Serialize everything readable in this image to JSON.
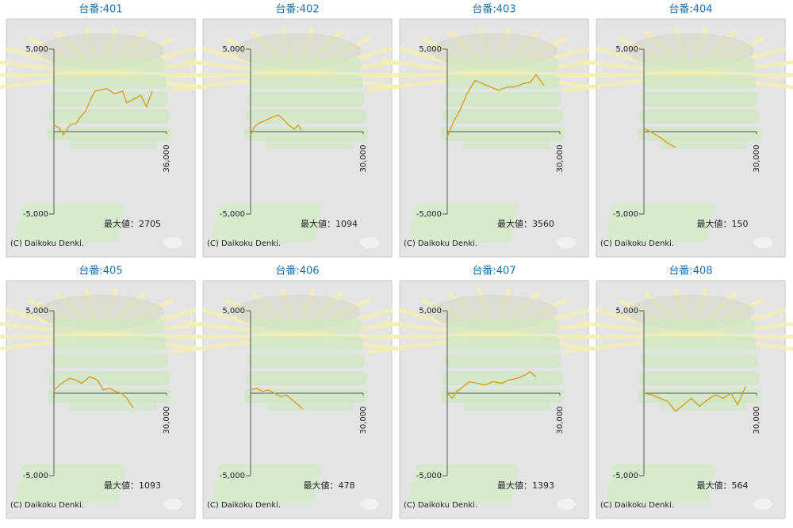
{
  "chart_data": [
    {
      "type": "line",
      "title": "台番:401",
      "x": [
        0,
        1775,
        3040,
        5070,
        7100,
        8100,
        10140,
        11830,
        13100,
        16900,
        19400,
        21970,
        23240,
        25800,
        27800,
        29600,
        31400
      ],
      "values": [
        400,
        200,
        -200,
        400,
        500,
        800,
        1250,
        2000,
        2450,
        2600,
        2300,
        2450,
        1750,
        2000,
        2200,
        1500,
        2450
      ],
      "color": "#d4a020",
      "xlim": [
        0,
        36000
      ],
      "ylim": [
        -5000,
        5000
      ],
      "xticks": [
        {
          "value": 36000,
          "label": "36,000"
        }
      ],
      "yticks": [
        {
          "value": 5000,
          "label": "5,000"
        },
        {
          "value": -5000,
          "label": "-5,000"
        }
      ],
      "annotation": "最大値：2705",
      "footer": "(C) Daikoku Denki."
    },
    {
      "type": "line",
      "title": "台番:402",
      "x": [
        0,
        1060,
        2110,
        4230,
        5920,
        7390,
        8870,
        10140,
        11620,
        12680,
        13520
      ],
      "values": [
        -200,
        300,
        500,
        700,
        900,
        1000,
        700,
        400,
        150,
        400,
        100
      ],
      "color": "#d4a020",
      "xlim": [
        0,
        30000
      ],
      "ylim": [
        -5000,
        5000
      ],
      "xticks": [
        {
          "value": 30000,
          "label": "30,000"
        }
      ],
      "yticks": [
        {
          "value": 5000,
          "label": "5,000"
        },
        {
          "value": -5000,
          "label": "-5,000"
        }
      ],
      "annotation": "最大値：1094",
      "footer": "(C) Daikoku Denki."
    },
    {
      "type": "line",
      "title": "台番:403",
      "x": [
        0,
        1690,
        3170,
        5280,
        7390,
        9510,
        11620,
        13730,
        15850,
        17960,
        20070,
        22180,
        23660,
        25770
      ],
      "values": [
        -300,
        600,
        1200,
        2300,
        3100,
        2900,
        2700,
        2500,
        2700,
        2700,
        2900,
        3000,
        3450,
        2800
      ],
      "color": "#d4a020",
      "xlim": [
        0,
        30000
      ],
      "ylim": [
        -5000,
        5000
      ],
      "xticks": [
        {
          "value": 30000,
          "label": "30,000"
        }
      ],
      "yticks": [
        {
          "value": 5000,
          "label": "5,000"
        },
        {
          "value": -5000,
          "label": "-5,000"
        }
      ],
      "annotation": "最大値：3560",
      "footer": "(C) Daikoku Denki."
    },
    {
      "type": "line",
      "title": "台番:404",
      "x": [
        0,
        1690,
        3170,
        4650,
        6340,
        8450
      ],
      "values": [
        200,
        0,
        -200,
        -400,
        -700,
        -950
      ],
      "color": "#d4a020",
      "xlim": [
        0,
        30000
      ],
      "ylim": [
        -5000,
        5000
      ],
      "xticks": [
        {
          "value": 30000,
          "label": "30,000"
        }
      ],
      "yticks": [
        {
          "value": 5000,
          "label": "5,000"
        },
        {
          "value": -5000,
          "label": "-5,000"
        }
      ],
      "annotation": "最大値：150",
      "footer": "(C) Daikoku Denki."
    },
    {
      "type": "line",
      "title": "台番:405",
      "x": [
        0,
        2110,
        4230,
        5920,
        7390,
        9510,
        11620,
        13100,
        14790,
        16480,
        17960,
        19440,
        21130
      ],
      "values": [
        200,
        600,
        900,
        800,
        600,
        1000,
        800,
        200,
        300,
        100,
        0,
        -300,
        -900
      ],
      "color": "#d4a020",
      "xlim": [
        0,
        30000
      ],
      "ylim": [
        -5000,
        5000
      ],
      "xticks": [
        {
          "value": 30000,
          "label": "30,000"
        }
      ],
      "yticks": [
        {
          "value": 5000,
          "label": "5,000"
        },
        {
          "value": -5000,
          "label": "-5,000"
        }
      ],
      "annotation": "最大値：1093",
      "footer": "(C) Daikoku Denki."
    },
    {
      "type": "line",
      "title": "台番:406",
      "x": [
        0,
        1690,
        3170,
        4650,
        6340,
        8030,
        9510,
        11620,
        13950
      ],
      "values": [
        200,
        300,
        100,
        200,
        0,
        -200,
        -100,
        -500,
        -950
      ],
      "color": "#d4a020",
      "xlim": [
        0,
        30000
      ],
      "ylim": [
        -5000,
        5000
      ],
      "xticks": [
        {
          "value": 30000,
          "label": "30,000"
        }
      ],
      "yticks": [
        {
          "value": 5000,
          "label": "5,000"
        },
        {
          "value": -5000,
          "label": "-5,000"
        }
      ],
      "annotation": "最大値：478",
      "footer": "(C) Daikoku Denki."
    },
    {
      "type": "line",
      "title": "台番:407",
      "x": [
        0,
        1270,
        2540,
        4230,
        5920,
        8030,
        10140,
        12250,
        14370,
        16480,
        18590,
        20710,
        21980,
        23660
      ],
      "values": [
        0,
        -300,
        100,
        400,
        700,
        600,
        500,
        700,
        600,
        800,
        900,
        1100,
        1300,
        1000
      ],
      "color": "#d4a020",
      "xlim": [
        0,
        30000
      ],
      "ylim": [
        -5000,
        5000
      ],
      "xticks": [
        {
          "value": 30000,
          "label": "30,000"
        }
      ],
      "yticks": [
        {
          "value": 5000,
          "label": "5,000"
        },
        {
          "value": -5000,
          "label": "-5,000"
        }
      ],
      "annotation": "最大値：1393",
      "footer": "(C) Daikoku Denki."
    },
    {
      "type": "line",
      "title": "台番:408",
      "x": [
        0,
        2110,
        4230,
        6340,
        8450,
        10560,
        12680,
        14790,
        16900,
        19010,
        21130,
        23240,
        24930,
        25780,
        27050
      ],
      "values": [
        0,
        -100,
        -300,
        -500,
        -1100,
        -700,
        -300,
        -800,
        -400,
        -100,
        -300,
        0,
        -700,
        -300,
        400
      ],
      "color": "#d4a020",
      "xlim": [
        0,
        30000
      ],
      "ylim": [
        -5000,
        5000
      ],
      "xticks": [
        {
          "value": 30000,
          "label": "30,000"
        }
      ],
      "yticks": [
        {
          "value": 5000,
          "label": "5,000"
        },
        {
          "value": -5000,
          "label": "-5,000"
        }
      ],
      "annotation": "最大値：564",
      "footer": "(C) Daikoku Denki."
    }
  ]
}
